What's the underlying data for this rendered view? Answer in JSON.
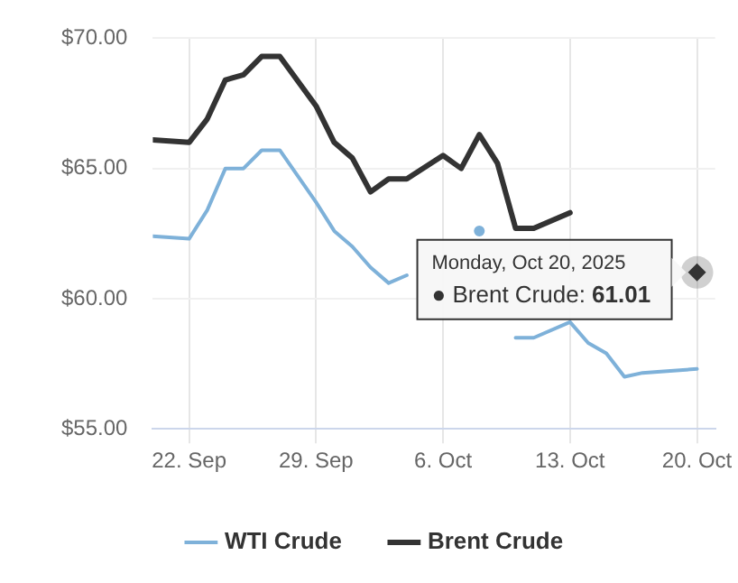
{
  "chart_data": {
    "type": "line",
    "x": [
      "2025-09-20",
      "2025-09-22",
      "2025-09-23",
      "2025-09-24",
      "2025-09-25",
      "2025-09-26",
      "2025-09-27",
      "2025-09-29",
      "2025-09-30",
      "2025-10-01",
      "2025-10-02",
      "2025-10-03",
      "2025-10-04",
      "2025-10-06",
      "2025-10-07",
      "2025-10-08",
      "2025-10-09",
      "2025-10-10",
      "2025-10-11",
      "2025-10-13",
      "2025-10-14",
      "2025-10-15",
      "2025-10-16",
      "2025-10-17",
      "2025-10-18",
      "2025-10-20"
    ],
    "series": [
      {
        "name": "WTI Crude",
        "color": "#7eb1d9",
        "values": [
          62.4,
          62.3,
          63.4,
          65.0,
          65.0,
          65.7,
          65.7,
          63.7,
          62.6,
          62.0,
          61.2,
          60.6,
          60.9,
          null,
          null,
          62.6,
          null,
          58.5,
          58.5,
          59.1,
          58.3,
          57.9,
          57.0,
          57.15,
          57.2,
          57.3
        ]
      },
      {
        "name": "Brent Crude",
        "color": "#333333",
        "values": [
          66.1,
          66.0,
          66.9,
          68.4,
          68.6,
          69.3,
          69.3,
          67.4,
          66.0,
          65.4,
          64.1,
          64.6,
          64.6,
          65.5,
          65.0,
          66.3,
          65.2,
          62.7,
          62.7,
          63.3,
          null,
          null,
          null,
          null,
          null,
          61.01
        ]
      }
    ],
    "xlim": [
      "2025-09-20",
      "2025-10-21"
    ],
    "xticks": [
      {
        "value": "2025-09-22",
        "label": "22. Sep"
      },
      {
        "value": "2025-09-29",
        "label": "29. Sep"
      },
      {
        "value": "2025-10-06",
        "label": "6. Oct"
      },
      {
        "value": "2025-10-13",
        "label": "13. Oct"
      },
      {
        "value": "2025-10-20",
        "label": "20. Oct"
      }
    ],
    "ylim": [
      55,
      70
    ],
    "yticks": [
      {
        "value": 55,
        "label": "$55.00"
      },
      {
        "value": 60,
        "label": "$60.00"
      },
      {
        "value": 65,
        "label": "$65.00"
      },
      {
        "value": 70,
        "label": "$70.00"
      }
    ],
    "grid": true,
    "legend": "bottom",
    "marker": "none",
    "line_style": "solid",
    "annotations": [
      "Monday, Oct 20, 2025",
      "● Brent Crude: 61.01"
    ]
  }
}
